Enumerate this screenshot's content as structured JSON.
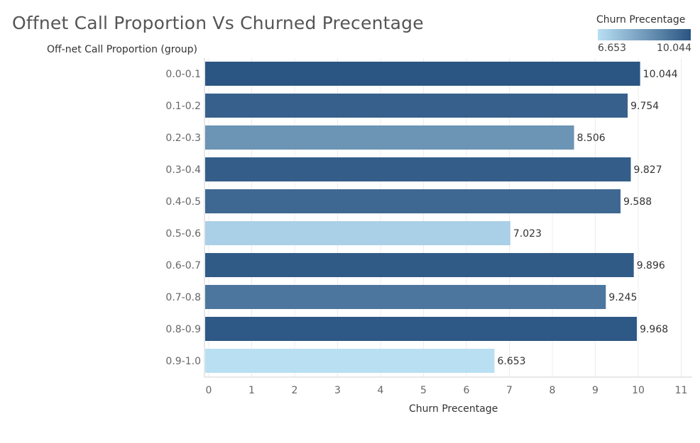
{
  "chart_data": {
    "type": "bar",
    "orientation": "horizontal",
    "title": "Offnet Call Proportion Vs Churned Precentage",
    "ylabel": "Off-net Call Proportion (group)",
    "xlabel": "Churn Precentage",
    "categories": [
      "0.0-0.1",
      "0.1-0.2",
      "0.2-0.3",
      "0.3-0.4",
      "0.4-0.5",
      "0.5-0.6",
      "0.6-0.7",
      "0.7-0.8",
      "0.8-0.9",
      "0.9-1.0"
    ],
    "values": [
      10.044,
      9.754,
      8.506,
      9.827,
      9.588,
      7.023,
      9.896,
      9.245,
      9.968,
      6.653
    ],
    "data_labels": [
      "10.044",
      "9.754",
      "8.506",
      "9.827",
      "9.588",
      "7.023",
      "9.896",
      "9.245",
      "9.968",
      "6.653"
    ],
    "xlim": [
      0,
      11
    ],
    "x_ticks": [
      "0",
      "1",
      "2",
      "3",
      "4",
      "5",
      "6",
      "7",
      "8",
      "9",
      "10",
      "11"
    ],
    "grid": true,
    "legend": {
      "title": "Churn Precentage",
      "min_label": "6.653",
      "max_label": "10.044",
      "placement": "top-right",
      "color_low": "#b9dff3",
      "color_high": "#2b5582"
    }
  }
}
